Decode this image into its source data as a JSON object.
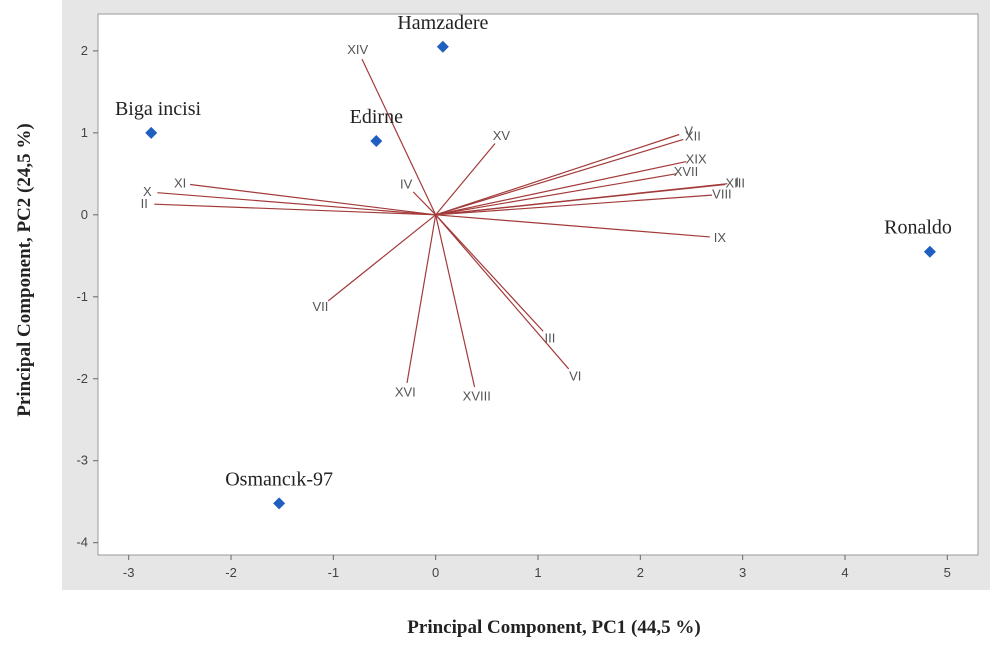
{
  "chart_data": {
    "type": "scatter",
    "title": "",
    "xlabel": "Principal Component, PC1 (44,5 %)",
    "ylabel": "Principal Component, PC2 (24,5 %)",
    "xlim": [
      -3.3,
      5.3
    ],
    "ylim": [
      -4.15,
      2.45
    ],
    "xticks": [
      -3,
      -2,
      -1,
      0,
      1,
      2,
      3,
      4,
      5
    ],
    "yticks": [
      -4,
      -3,
      -2,
      -1,
      0,
      1,
      2
    ],
    "grid": false,
    "colors": {
      "points": "#1f5fbf",
      "vectors": "#a33a3a",
      "frame": "#e6e6e6",
      "plot_bg": "#ffffff"
    },
    "points": [
      {
        "name": "Hamzadere",
        "x": 0.07,
        "y": 2.05
      },
      {
        "name": "Biga incisi",
        "x": -2.78,
        "y": 1.0
      },
      {
        "name": "Edirne",
        "x": -0.58,
        "y": 0.9
      },
      {
        "name": "Ronaldo",
        "x": 4.83,
        "y": -0.45
      },
      {
        "name": "Osmancık-97",
        "x": -1.53,
        "y": -3.52
      }
    ],
    "vectors": [
      {
        "name": "I",
        "x": 2.85,
        "y": 0.38
      },
      {
        "name": "II",
        "x": -2.75,
        "y": 0.13
      },
      {
        "name": "III",
        "x": 1.05,
        "y": -1.42
      },
      {
        "name": "IV",
        "x": -0.22,
        "y": 0.28
      },
      {
        "name": "V",
        "x": 2.38,
        "y": 0.98
      },
      {
        "name": "VI",
        "x": 1.3,
        "y": -1.88
      },
      {
        "name": "VII",
        "x": -1.05,
        "y": -1.05
      },
      {
        "name": "VIII",
        "x": 2.7,
        "y": 0.24
      },
      {
        "name": "IX",
        "x": 2.68,
        "y": -0.27
      },
      {
        "name": "X",
        "x": -2.72,
        "y": 0.27
      },
      {
        "name": "XI",
        "x": -2.4,
        "y": 0.37
      },
      {
        "name": "XII",
        "x": 2.42,
        "y": 0.92
      },
      {
        "name": "XIII",
        "x": 2.83,
        "y": 0.37
      },
      {
        "name": "XIV",
        "x": -0.72,
        "y": 1.9
      },
      {
        "name": "XV",
        "x": 0.58,
        "y": 0.87
      },
      {
        "name": "XVI",
        "x": -0.28,
        "y": -2.05
      },
      {
        "name": "XVII",
        "x": 2.35,
        "y": 0.5
      },
      {
        "name": "XVIII",
        "x": 0.38,
        "y": -2.1
      },
      {
        "name": "XIX",
        "x": 2.45,
        "y": 0.65
      }
    ]
  }
}
